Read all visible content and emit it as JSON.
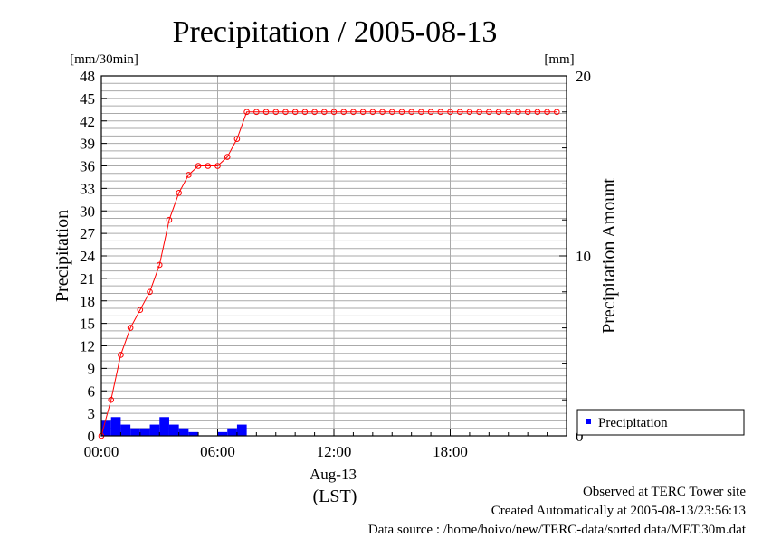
{
  "chart_data": {
    "type": "bar+line",
    "title": "Precipitation / 2005-08-13",
    "left_unit": "[mm/30min]",
    "right_unit": "[mm]",
    "ylabel_left": "Precipitation",
    "ylabel_right": "Precipitation Amount",
    "ylim_left": [
      0,
      48
    ],
    "ylim_right": [
      0,
      20
    ],
    "yticks_left": [
      "0",
      "3",
      "6",
      "9",
      "12",
      "15",
      "18",
      "21",
      "24",
      "27",
      "30",
      "33",
      "36",
      "39",
      "42",
      "45",
      "48"
    ],
    "yticks_right": [
      "0",
      "10",
      "20"
    ],
    "xticks": [
      "00:00",
      "06:00",
      "12:00",
      "18:00"
    ],
    "x_sublabel": "Aug-13",
    "xlabel": "(LST)",
    "xlim_hours": [
      0,
      24
    ],
    "interval_hours": 0.5,
    "grid": true,
    "legend": {
      "placement": "right",
      "label": "Precipitation"
    },
    "bar_color": "#0000ff",
    "line_color": "#ff0000",
    "bars": {
      "name": "Precipitation",
      "values": [
        2.0,
        2.5,
        1.5,
        1.0,
        1.0,
        1.5,
        2.5,
        1.5,
        1.0,
        0.5,
        0,
        0,
        0.5,
        1.0,
        1.5
      ]
    },
    "cumulative": {
      "values": [
        0,
        2.0,
        4.5,
        6.0,
        7.0,
        8.0,
        9.5,
        12.0,
        13.5,
        14.5,
        15.0,
        15.0,
        15.0,
        15.5,
        16.5,
        18.0,
        18.0,
        18.0,
        18.0,
        18.0,
        18.0,
        18.0,
        18.0,
        18.0,
        18.0,
        18.0,
        18.0,
        18.0,
        18.0,
        18.0,
        18.0,
        18.0,
        18.0,
        18.0,
        18.0,
        18.0,
        18.0,
        18.0,
        18.0,
        18.0,
        18.0,
        18.0,
        18.0,
        18.0,
        18.0,
        18.0,
        18.0,
        18.0
      ]
    }
  },
  "footer": {
    "line1": "Observed at TERC Tower site",
    "line2": "Created Automatically at 2005-08-13/23:56:13",
    "line3": "Data source : /home/hoivo/new/TERC-data/sorted  data/MET.30m.dat"
  }
}
